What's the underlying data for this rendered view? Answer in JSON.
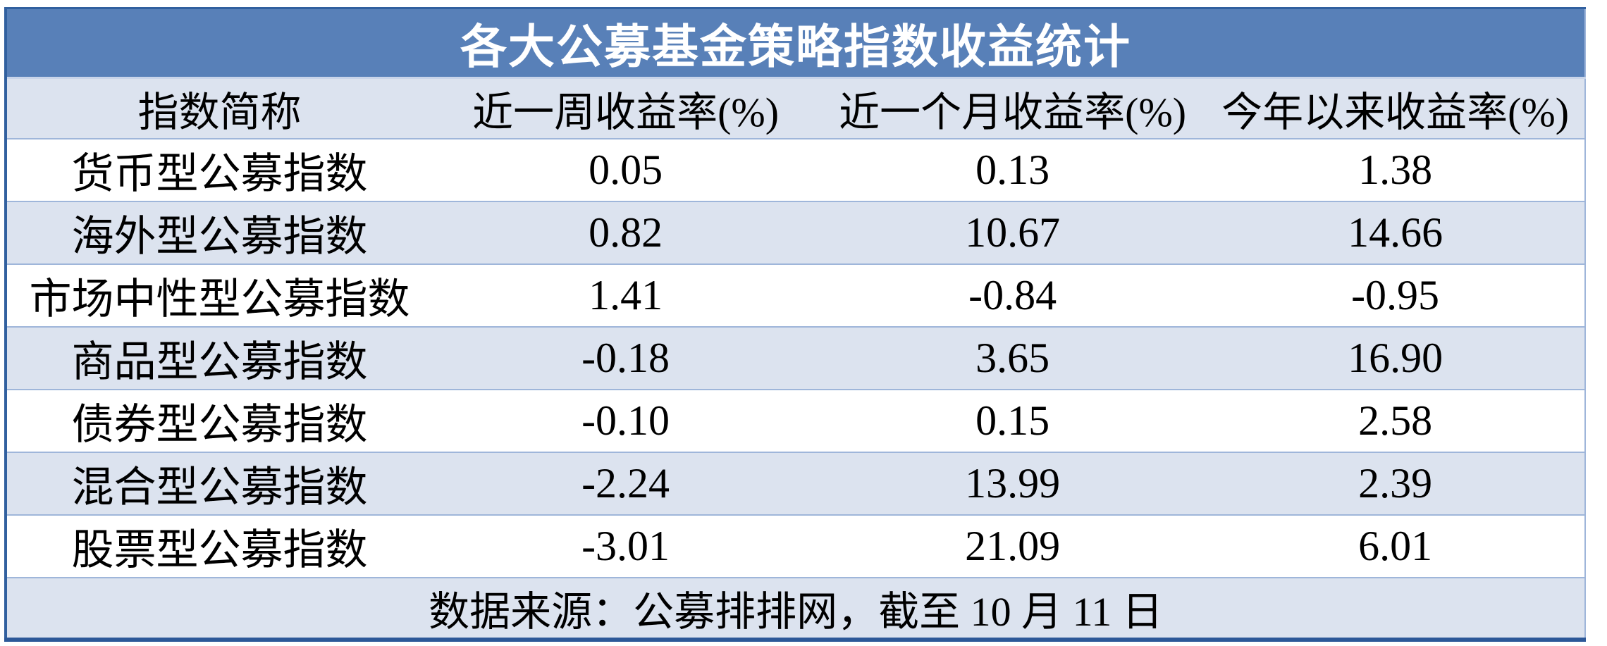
{
  "table": {
    "title": "各大公募基金策略指数收益统计",
    "columns": [
      "指数简称",
      "近一周收益率(%)",
      "近一个月收益率(%)",
      "今年以来收益率(%)"
    ],
    "rows": [
      {
        "cells": [
          "货币型公募指数",
          "0.05",
          "0.13",
          "1.38"
        ]
      },
      {
        "cells": [
          "海外型公募指数",
          "0.82",
          "10.67",
          "14.66"
        ]
      },
      {
        "cells": [
          "市场中性型公募指数",
          "1.41",
          "-0.84",
          "-0.95"
        ]
      },
      {
        "cells": [
          "商品型公募指数",
          "-0.18",
          "3.65",
          "16.90"
        ]
      },
      {
        "cells": [
          "债券型公募指数",
          "-0.10",
          "0.15",
          "2.58"
        ]
      },
      {
        "cells": [
          "混合型公募指数",
          "-2.24",
          "13.99",
          "2.39"
        ]
      },
      {
        "cells": [
          "股票型公募指数",
          "-3.01",
          "21.09",
          "6.01"
        ]
      }
    ],
    "footer": "数据来源：公募排排网，截至 10 月 11 日"
  },
  "colors": {
    "title_background": "#5880B8",
    "title_text": "#FFFFFF",
    "band_background": "#DCE3EF",
    "outer_border": "#31609F",
    "bottom_border": "#2C5898",
    "row_divider": "#9FB6DA",
    "body_text": "#000000"
  },
  "chart_data": {
    "type": "table",
    "title": "各大公募基金策略指数收益统计",
    "columns": [
      "指数简称",
      "近一周收益率(%)",
      "近一个月收益率(%)",
      "今年以来收益率(%)"
    ],
    "rows": [
      [
        "货币型公募指数",
        0.05,
        0.13,
        1.38
      ],
      [
        "海外型公募指数",
        0.82,
        10.67,
        14.66
      ],
      [
        "市场中性型公募指数",
        1.41,
        -0.84,
        -0.95
      ],
      [
        "商品型公募指数",
        -0.18,
        3.65,
        16.9
      ],
      [
        "债券型公募指数",
        -0.1,
        0.15,
        2.58
      ],
      [
        "混合型公募指数",
        -2.24,
        13.99,
        2.39
      ],
      [
        "股票型公募指数",
        -3.01,
        21.09,
        6.01
      ]
    ],
    "footnote": "数据来源：公募排排网，截至 10 月 11 日",
    "banded_rows": true,
    "header_position": "top"
  }
}
